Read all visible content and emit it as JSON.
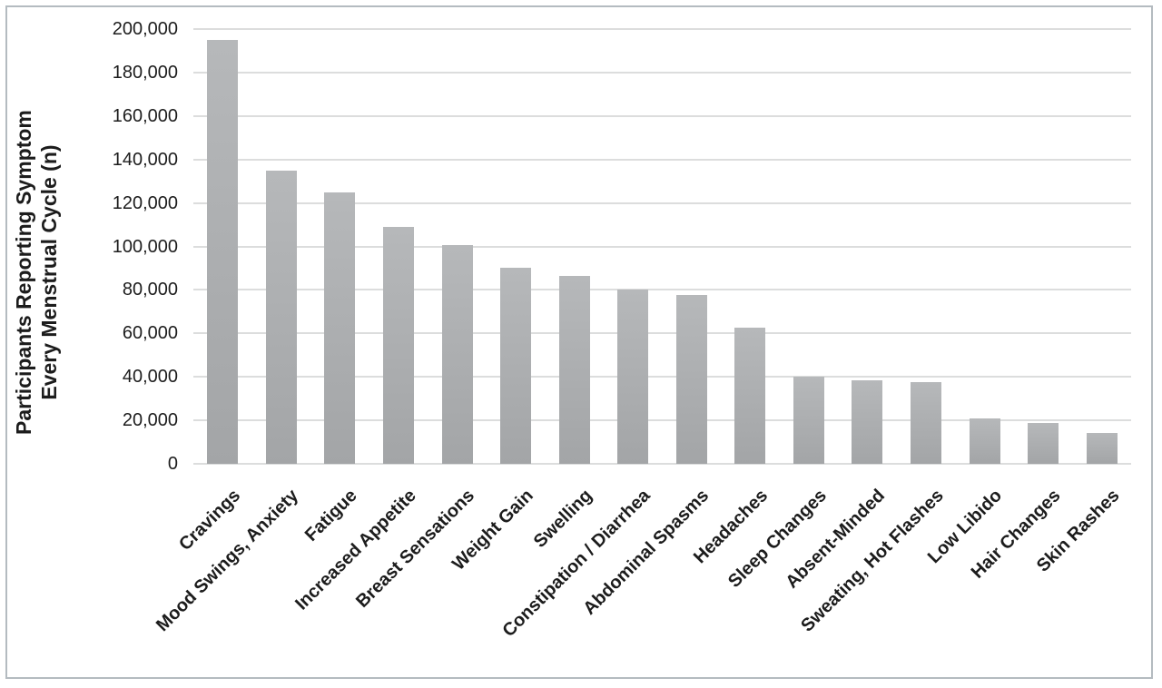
{
  "figure": {
    "border_color": "#b4bbc0",
    "background_color": "#ffffff"
  },
  "chart_data": {
    "type": "bar",
    "title": "",
    "ylabel_line1": "Participants Reporting Symptom",
    "ylabel_line2": "Every Menstrual Cycle (n)",
    "xlabel": "",
    "categories": [
      "Cravings",
      "Mood Swings, Anxiety",
      "Fatigue",
      "Increased Appetite",
      "Breast Sensations",
      "Weight Gain",
      "Swelling",
      "Constipation / Diarrhea",
      "Abdominal Spasms",
      "Headaches",
      "Sleep Changes",
      "Absent-Minded",
      "Sweating, Hot Flashes",
      "Low Libido",
      "Hair Changes",
      "Skin Rashes"
    ],
    "values": [
      195000,
      135000,
      125000,
      109000,
      100500,
      90000,
      86500,
      80000,
      77500,
      62500,
      40000,
      38500,
      37500,
      21000,
      19000,
      14000
    ],
    "ylim": [
      0,
      200000
    ],
    "ytick_step": 20000,
    "ytick_labels": [
      "0",
      "20,000",
      "40,000",
      "60,000",
      "80,000",
      "100,000",
      "120,000",
      "140,000",
      "160,000",
      "180,000",
      "200,000"
    ],
    "grid": "horizontal",
    "legend": "none",
    "bar_color_top": "#b6b8ba",
    "bar_color_bottom": "#a3a5a7",
    "gridline_color": "#dcdddd",
    "text_color": "#1c1c1c"
  }
}
